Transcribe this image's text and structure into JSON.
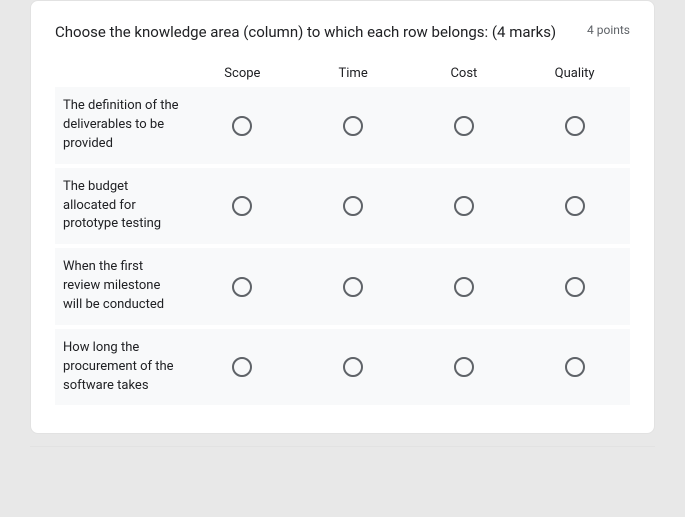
{
  "question": {
    "title": "Choose the knowledge area (column) to which each row belongs: (4 marks)",
    "points": "4 points"
  },
  "grid": {
    "type": "radio-grid",
    "columns": [
      "Scope",
      "Time",
      "Cost",
      "Quality"
    ],
    "rows": [
      {
        "label": "The definition of the deliverables to be provided"
      },
      {
        "label": "The budget allocated for prototype testing"
      },
      {
        "label": "When the first review milestone will be conducted"
      },
      {
        "label": "How long the procurement of the software takes"
      }
    ],
    "radio_border_color": "#5f6368",
    "row_bg_shade": "#f8f9fa",
    "row_bg_alt": "#ffffff",
    "text_color": "#202124",
    "font_size_title": 15,
    "font_size_cell": 13
  },
  "layout": {
    "card_bg": "#ffffff",
    "page_bg": "#e8e8e8",
    "border_color": "#e2e2e2"
  }
}
